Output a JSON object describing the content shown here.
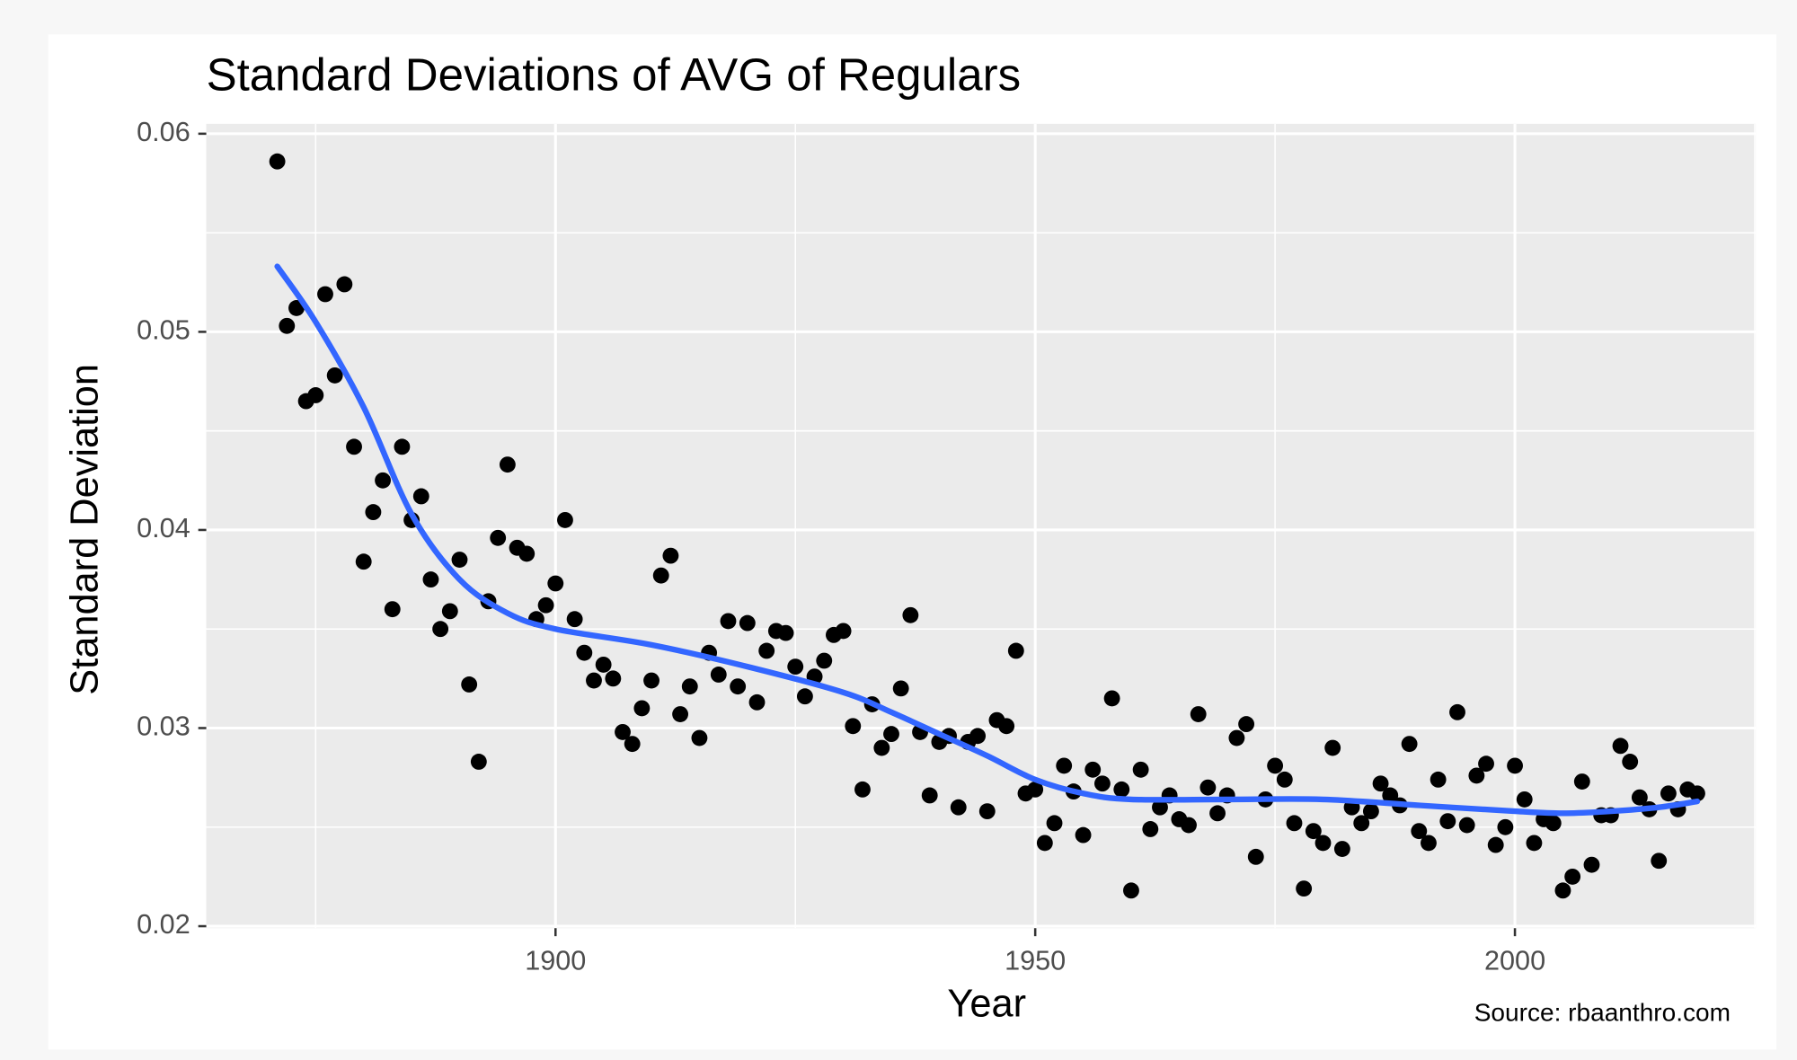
{
  "chart_data": {
    "type": "scatter",
    "title": "Standard Deviations of AVG of Regulars",
    "x_label": "Year",
    "y_label": "Standard Deviation",
    "source": "Source: rbaanthro.com",
    "color": "#000000",
    "x": [
      1871,
      1872,
      1873,
      1874,
      1875,
      1876,
      1877,
      1878,
      1879,
      1880,
      1881,
      1882,
      1883,
      1884,
      1885,
      1886,
      1887,
      1888,
      1889,
      1890,
      1891,
      1892,
      1893,
      1894,
      1895,
      1896,
      1897,
      1898,
      1899,
      1900,
      1901,
      1902,
      1903,
      1904,
      1905,
      1906,
      1907,
      1908,
      1909,
      1910,
      1911,
      1912,
      1913,
      1914,
      1915,
      1916,
      1917,
      1918,
      1919,
      1920,
      1921,
      1922,
      1923,
      1924,
      1925,
      1926,
      1927,
      1928,
      1929,
      1930,
      1931,
      1932,
      1933,
      1934,
      1935,
      1936,
      1937,
      1938,
      1939,
      1940,
      1941,
      1942,
      1943,
      1944,
      1945,
      1946,
      1947,
      1948,
      1949,
      1950,
      1951,
      1952,
      1953,
      1954,
      1955,
      1956,
      1957,
      1958,
      1959,
      1960,
      1961,
      1962,
      1963,
      1964,
      1965,
      1966,
      1967,
      1968,
      1969,
      1970,
      1971,
      1972,
      1973,
      1974,
      1975,
      1976,
      1977,
      1978,
      1979,
      1980,
      1981,
      1982,
      1983,
      1984,
      1985,
      1986,
      1987,
      1988,
      1989,
      1990,
      1991,
      1992,
      1993,
      1994,
      1995,
      1996,
      1997,
      1998,
      1999,
      2000,
      2001,
      2002,
      2003,
      2004,
      2005,
      2006,
      2007,
      2008,
      2009,
      2010,
      2011,
      2012,
      2013,
      2014,
      2015,
      2016,
      2017,
      2018,
      2019
    ],
    "values": [
      0.0586,
      0.0503,
      0.0512,
      0.0465,
      0.0468,
      0.0519,
      0.0478,
      0.0524,
      0.0442,
      0.0384,
      0.0409,
      0.0425,
      0.036,
      0.0442,
      0.0405,
      0.0417,
      0.0375,
      0.035,
      0.0359,
      0.0385,
      0.0322,
      0.0283,
      0.0364,
      0.0396,
      0.0433,
      0.0391,
      0.0388,
      0.0355,
      0.0362,
      0.0373,
      0.0405,
      0.0355,
      0.0338,
      0.0324,
      0.0332,
      0.0325,
      0.0298,
      0.0292,
      0.031,
      0.0324,
      0.0377,
      0.0387,
      0.0307,
      0.0321,
      0.0295,
      0.0338,
      0.0327,
      0.0354,
      0.0321,
      0.0353,
      0.0313,
      0.0339,
      0.0349,
      0.0348,
      0.0331,
      0.0316,
      0.0326,
      0.0334,
      0.0347,
      0.0349,
      0.0301,
      0.0269,
      0.0312,
      0.029,
      0.0297,
      0.032,
      0.0357,
      0.0298,
      0.0266,
      0.0293,
      0.0296,
      0.026,
      0.0293,
      0.0296,
      0.0258,
      0.0304,
      0.0301,
      0.0339,
      0.0267,
      0.0269,
      0.0242,
      0.0252,
      0.0281,
      0.0268,
      0.0246,
      0.0279,
      0.0272,
      0.0315,
      0.0269,
      0.0218,
      0.0279,
      0.0249,
      0.026,
      0.0266,
      0.0254,
      0.0251,
      0.0307,
      0.027,
      0.0257,
      0.0266,
      0.0295,
      0.0302,
      0.0235,
      0.0264,
      0.0281,
      0.0274,
      0.0252,
      0.0219,
      0.0248,
      0.0242,
      0.029,
      0.0239,
      0.026,
      0.0252,
      0.0258,
      0.0272,
      0.0266,
      0.0261,
      0.0292,
      0.0248,
      0.0242,
      0.0274,
      0.0253,
      0.0308,
      0.0251,
      0.0276,
      0.0282,
      0.0241,
      0.025,
      0.0281,
      0.0264,
      0.0242,
      0.0254,
      0.0252,
      0.0218,
      0.0225,
      0.0273,
      0.0231,
      0.0256,
      0.0256,
      0.0291,
      0.0283,
      0.0265,
      0.0259,
      0.0233,
      0.0267,
      0.0259,
      0.0269,
      0.0267
    ],
    "trend": {
      "color": "#3366ff",
      "x": [
        1871,
        1875,
        1880,
        1885,
        1890,
        1895,
        1900,
        1910,
        1920,
        1930,
        1935,
        1940,
        1945,
        1950,
        1955,
        1960,
        1970,
        1980,
        1990,
        2000,
        2005,
        2010,
        2015,
        2019
      ],
      "values": [
        0.0533,
        0.0505,
        0.0462,
        0.0408,
        0.0375,
        0.0358,
        0.035,
        0.0342,
        0.0331,
        0.0318,
        0.0308,
        0.0297,
        0.0286,
        0.0274,
        0.0267,
        0.0264,
        0.0264,
        0.0264,
        0.0261,
        0.0258,
        0.0257,
        0.0258,
        0.026,
        0.0263
      ]
    },
    "xlim": [
      1863.6,
      2025.1
    ],
    "ylim": [
      0.0199,
      0.0605
    ],
    "xticks": [
      1900,
      1950,
      2000
    ],
    "yticks": [
      0.02,
      0.03,
      0.04,
      0.05,
      0.06
    ],
    "xminor": [
      1875,
      1925,
      1975,
      2025
    ],
    "yminor": [
      0.025,
      0.035,
      0.045,
      0.055
    ],
    "grid": true
  }
}
